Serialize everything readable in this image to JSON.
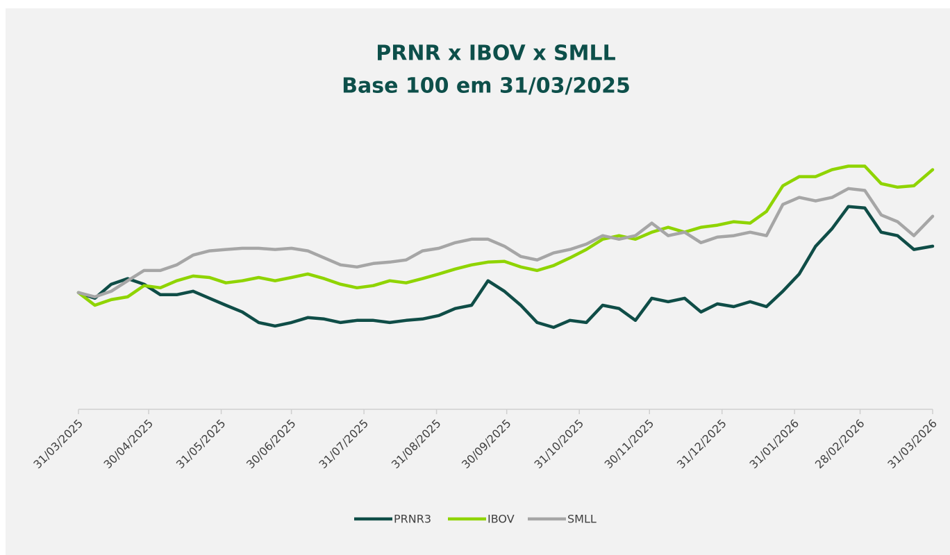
{
  "chart_data": {
    "type": "line",
    "title": "PRNR x IBOV x SMLL",
    "subtitle": "Base 100 em 31/03/2025",
    "x": [
      "31/03/2025",
      "07/04/2025",
      "14/04/2025",
      "21/04/2025",
      "28/04/2025",
      "05/05/2025",
      "12/05/2025",
      "19/05/2025",
      "26/05/2025",
      "02/06/2025",
      "09/06/2025",
      "16/06/2025",
      "23/06/2025",
      "30/06/2025",
      "07/07/2025",
      "14/07/2025",
      "21/07/2025",
      "28/07/2025",
      "04/08/2025",
      "11/08/2025",
      "18/08/2025",
      "25/08/2025",
      "01/09/2025",
      "08/09/2025",
      "15/09/2025",
      "22/09/2025",
      "29/09/2025",
      "06/10/2025",
      "13/10/2025",
      "20/10/2025",
      "27/10/2025",
      "03/11/2025",
      "10/11/2025",
      "17/11/2025",
      "24/11/2025",
      "01/12/2025",
      "08/12/2025",
      "15/12/2025",
      "22/12/2025",
      "29/12/2025",
      "05/01/2026",
      "12/01/2026",
      "19/01/2026",
      "26/01/2026",
      "02/02/2026",
      "09/02/2026",
      "16/02/2026",
      "23/02/2026",
      "02/03/2026",
      "09/03/2026",
      "16/03/2026",
      "23/03/2026",
      "31/03/2026"
    ],
    "series": [
      {
        "name": "PRNR3",
        "color": "#0f4d47",
        "values": [
          100,
          97.6,
          103.6,
          106.0,
          103.6,
          99.1,
          99.1,
          100.6,
          97.6,
          94.6,
          91.7,
          87.2,
          85.7,
          87.2,
          89.3,
          88.7,
          87.2,
          88.1,
          88.1,
          87.2,
          88.1,
          88.7,
          90.2,
          93.2,
          94.6,
          105.1,
          100.6,
          94.6,
          87.2,
          85.1,
          88.1,
          87.2,
          94.6,
          93.2,
          88.1,
          97.6,
          96.1,
          97.6,
          91.7,
          95.2,
          94.0,
          96.1,
          94.0,
          100.6,
          108.0,
          119.9,
          127.4,
          136.9,
          136.3,
          125.9,
          124.4,
          118.5,
          119.9
        ]
      },
      {
        "name": "IBOV",
        "color": "#8fd400",
        "values": [
          100,
          94.6,
          97.0,
          98.2,
          103.0,
          102.1,
          105.1,
          107.1,
          106.5,
          104.2,
          105.1,
          106.5,
          105.1,
          106.5,
          108.0,
          106.0,
          103.6,
          102.1,
          103.0,
          105.1,
          104.2,
          106.0,
          108.0,
          110.1,
          111.9,
          113.1,
          113.4,
          111.0,
          109.5,
          111.6,
          114.9,
          118.5,
          122.9,
          124.4,
          122.9,
          125.9,
          128.0,
          125.9,
          128.0,
          128.9,
          130.4,
          129.8,
          134.8,
          145.8,
          149.7,
          149.7,
          152.7,
          154.2,
          154.2,
          146.7,
          145.2,
          145.8,
          152.7
        ]
      },
      {
        "name": "SMLL",
        "color": "#a6a6a6",
        "values": [
          100,
          98.2,
          100.6,
          105.1,
          109.5,
          109.5,
          111.9,
          116.1,
          117.9,
          118.5,
          119.0,
          119.0,
          118.5,
          119.0,
          117.9,
          114.9,
          111.9,
          111.0,
          112.5,
          113.1,
          114.0,
          117.9,
          119.0,
          121.4,
          122.9,
          122.9,
          119.9,
          115.5,
          114.0,
          117.0,
          118.5,
          120.8,
          124.4,
          122.9,
          124.4,
          129.8,
          124.4,
          125.9,
          121.4,
          123.8,
          124.4,
          125.9,
          124.4,
          137.8,
          140.8,
          139.3,
          140.8,
          144.6,
          143.8,
          133.3,
          130.4,
          124.4,
          132.7
        ]
      }
    ],
    "xlim": [
      "31/03/2025",
      "31/03/2026"
    ],
    "xticks": [
      "31/03/2025",
      "30/04/2025",
      "31/05/2025",
      "30/06/2025",
      "31/07/2025",
      "31/08/2025",
      "30/09/2025",
      "31/10/2025",
      "30/11/2025",
      "31/12/2025",
      "31/01/2026",
      "28/02/2026",
      "31/03/2026"
    ],
    "ylim": [
      50,
      160
    ],
    "legend": "bottom"
  }
}
